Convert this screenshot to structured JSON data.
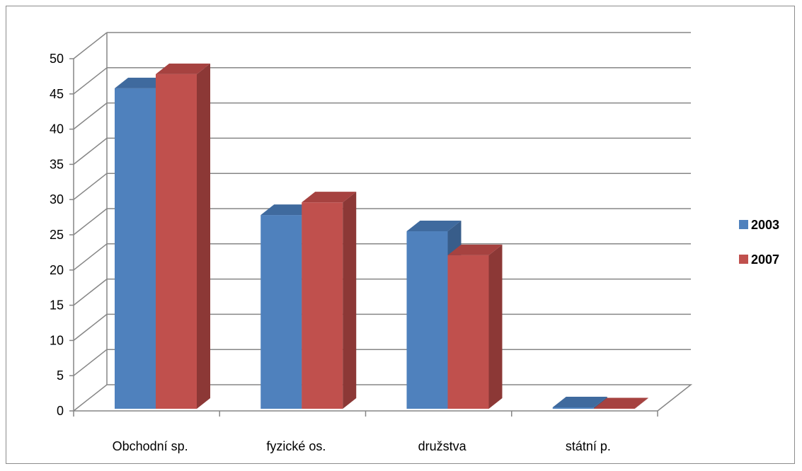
{
  "chart_data": {
    "type": "bar",
    "style": "3d-clustered-column",
    "categories": [
      "Obchodní sp.",
      "fyzické os.",
      "družstva",
      "státní p."
    ],
    "series": [
      {
        "name": "2003",
        "values": [
          45.5,
          27.5,
          25.2,
          0.2
        ],
        "color": "#4F81BD",
        "side_color": "#385D8A",
        "top_color": "#3F6A9E"
      },
      {
        "name": "2007",
        "values": [
          47.5,
          29.3,
          21.8,
          0
        ],
        "color": "#C0504D",
        "side_color": "#8C3836",
        "top_color": "#A64240"
      }
    ],
    "ylim": [
      0,
      50
    ],
    "yticks": [
      0,
      5,
      10,
      15,
      20,
      25,
      30,
      35,
      40,
      45,
      50
    ],
    "grid": true,
    "legend_position": "right",
    "title": "",
    "xlabel": "",
    "ylabel": ""
  }
}
